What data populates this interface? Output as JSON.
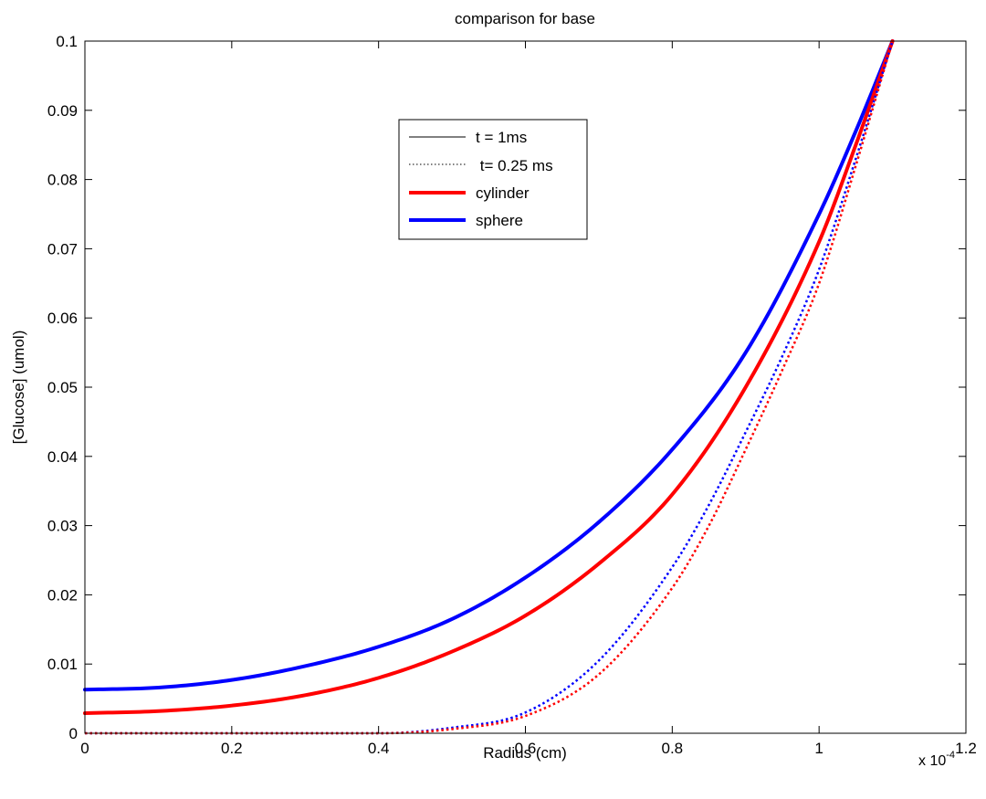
{
  "chart_data": {
    "type": "line",
    "title": "comparison for base",
    "xlabel": "Radius (cm)",
    "ylabel": "[Glucose] (umol)",
    "x_multiplier": {
      "base": "x 10",
      "exponent": "-4"
    },
    "xlim": [
      0,
      1.2
    ],
    "ylim": [
      0,
      0.1
    ],
    "x_ticks": [
      0,
      0.2,
      0.4,
      0.6,
      0.8,
      1,
      1.2
    ],
    "x_tick_labels": [
      "0",
      "0.2",
      "0.4",
      "0.6",
      "0.8",
      "1",
      "1.2"
    ],
    "y_ticks": [
      0,
      0.01,
      0.02,
      0.03,
      0.04,
      0.05,
      0.06,
      0.07,
      0.08,
      0.09,
      0.1
    ],
    "y_tick_labels": [
      "0",
      "0.01",
      "0.02",
      "0.03",
      "0.04",
      "0.05",
      "0.06",
      "0.07",
      "0.08",
      "0.09",
      "0.1"
    ],
    "grid": false,
    "legend": {
      "placement": "upper-center",
      "entries": [
        {
          "label": "t = 1ms",
          "color": "#000000",
          "style": "solid"
        },
        {
          "label": " t= 0.25 ms",
          "color": "#000000",
          "style": "dotted"
        },
        {
          "label": "cylinder",
          "color": "#ff0000",
          "style": "solid-thick"
        },
        {
          "label": "sphere",
          "color": "#0000ff",
          "style": "solid-thick"
        }
      ]
    },
    "series": [
      {
        "color": "#0000ff",
        "style": "solid",
        "x": [
          0,
          0.1,
          0.2,
          0.3,
          0.4,
          0.5,
          0.6,
          0.7,
          0.8,
          0.9,
          1.0,
          1.05,
          1.1
        ],
        "y": [
          0.0063,
          0.0066,
          0.0077,
          0.0097,
          0.0125,
          0.0165,
          0.0225,
          0.0305,
          0.041,
          0.055,
          0.075,
          0.087,
          0.1
        ]
      },
      {
        "color": "#ff0000",
        "style": "solid",
        "x": [
          0,
          0.1,
          0.2,
          0.3,
          0.4,
          0.5,
          0.6,
          0.7,
          0.8,
          0.9,
          1.0,
          1.05,
          1.1
        ],
        "y": [
          0.0029,
          0.0032,
          0.004,
          0.0055,
          0.008,
          0.0118,
          0.017,
          0.0245,
          0.0345,
          0.05,
          0.071,
          0.085,
          0.1
        ]
      },
      {
        "color": "#0000ff",
        "style": "dotted",
        "x": [
          0,
          0.4,
          0.5,
          0.6,
          0.7,
          0.8,
          0.85,
          0.9,
          0.95,
          1.0,
          1.05,
          1.1
        ],
        "y": [
          0,
          0,
          0.0008,
          0.003,
          0.0105,
          0.024,
          0.033,
          0.0435,
          0.0545,
          0.067,
          0.083,
          0.1
        ]
      },
      {
        "color": "#ff0000",
        "style": "dotted",
        "x": [
          0,
          0.4,
          0.5,
          0.6,
          0.7,
          0.8,
          0.85,
          0.9,
          0.95,
          1.0,
          1.05,
          1.1
        ],
        "y": [
          0,
          0,
          0.0006,
          0.0025,
          0.0085,
          0.021,
          0.03,
          0.041,
          0.0525,
          0.065,
          0.082,
          0.1
        ]
      }
    ]
  }
}
